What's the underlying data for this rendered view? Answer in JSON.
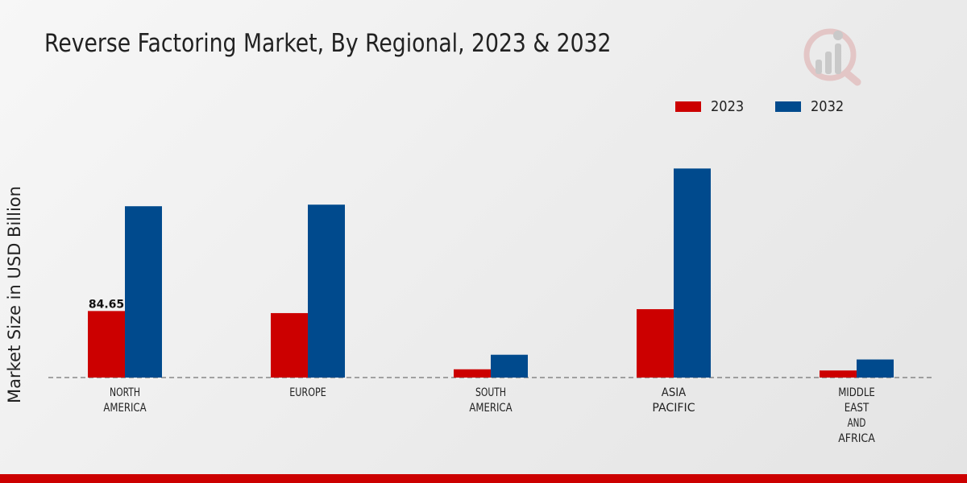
{
  "chart_data": {
    "type": "bar",
    "title": "Reverse Factoring Market, By Regional, 2023 & 2032",
    "ylabel": "Market Size in USD Billion",
    "xlabel": "",
    "categories": [
      [
        "NORTH",
        "AMERICA"
      ],
      [
        "EUROPE"
      ],
      [
        "SOUTH",
        "AMERICA"
      ],
      [
        "ASIA",
        "PACIFIC"
      ],
      [
        "MIDDLE",
        "EAST",
        "AND",
        "AFRICA"
      ]
    ],
    "series": [
      {
        "name": "2023",
        "color": "#cc0000",
        "values": [
          84.65,
          82.0,
          10.5,
          87.0,
          9.0
        ]
      },
      {
        "name": "2032",
        "color": "#004a8d",
        "values": [
          218.0,
          220.0,
          29.0,
          266.0,
          23.0
        ]
      }
    ],
    "data_labels": [
      {
        "series": 0,
        "index": 0,
        "text": "84.65"
      }
    ],
    "ylim": [
      0,
      420
    ],
    "legend_position": "top-right",
    "grid": false
  }
}
